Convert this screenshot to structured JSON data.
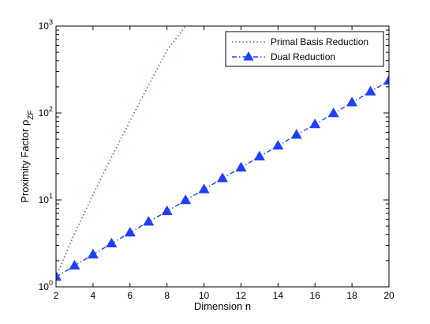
{
  "chart_data": {
    "type": "line",
    "xlabel": "Dimension n",
    "ylabel": "Proximity Factor ρ",
    "ylabel_subscript": "ZF",
    "x_scale": "linear",
    "y_scale": "log",
    "xlim": [
      2,
      20
    ],
    "ylim": [
      1,
      1000
    ],
    "x_ticks": [
      2,
      4,
      6,
      8,
      10,
      12,
      14,
      16,
      18,
      20
    ],
    "x_tick_labels": [
      "2",
      "4",
      "6",
      "8",
      "10",
      "12",
      "14",
      "16",
      "18",
      "20"
    ],
    "y_ticks": [
      1,
      10,
      100,
      1000
    ],
    "y_tick_labels": [
      {
        "base": "10",
        "exp": "0"
      },
      {
        "base": "10",
        "exp": "1"
      },
      {
        "base": "10",
        "exp": "2"
      },
      {
        "base": "10",
        "exp": "3"
      }
    ],
    "grid": false,
    "legend_position": "top-right",
    "colors": {
      "primal": "#4169e1",
      "dual": "#1f3fff",
      "axis": "#000000"
    },
    "series": [
      {
        "name": "Primal Basis Reduction",
        "style": "dotted",
        "marker": "none",
        "x": [
          2,
          3,
          4,
          5,
          6,
          7,
          8,
          9
        ],
        "y": [
          1.3,
          4.1,
          11.5,
          31,
          81,
          208,
          525,
          1000
        ]
      },
      {
        "name": "Dual Reduction",
        "style": "dash-dot",
        "marker": "triangle",
        "x": [
          2,
          3,
          4,
          5,
          6,
          7,
          8,
          9,
          10,
          11,
          12,
          13,
          14,
          15,
          16,
          17,
          18,
          19,
          20
        ],
        "y": [
          1.3,
          1.75,
          2.35,
          3.15,
          4.2,
          5.6,
          7.4,
          9.9,
          13.2,
          17.7,
          23.5,
          31.5,
          42,
          56,
          74,
          99,
          132,
          176,
          235
        ]
      }
    ]
  }
}
